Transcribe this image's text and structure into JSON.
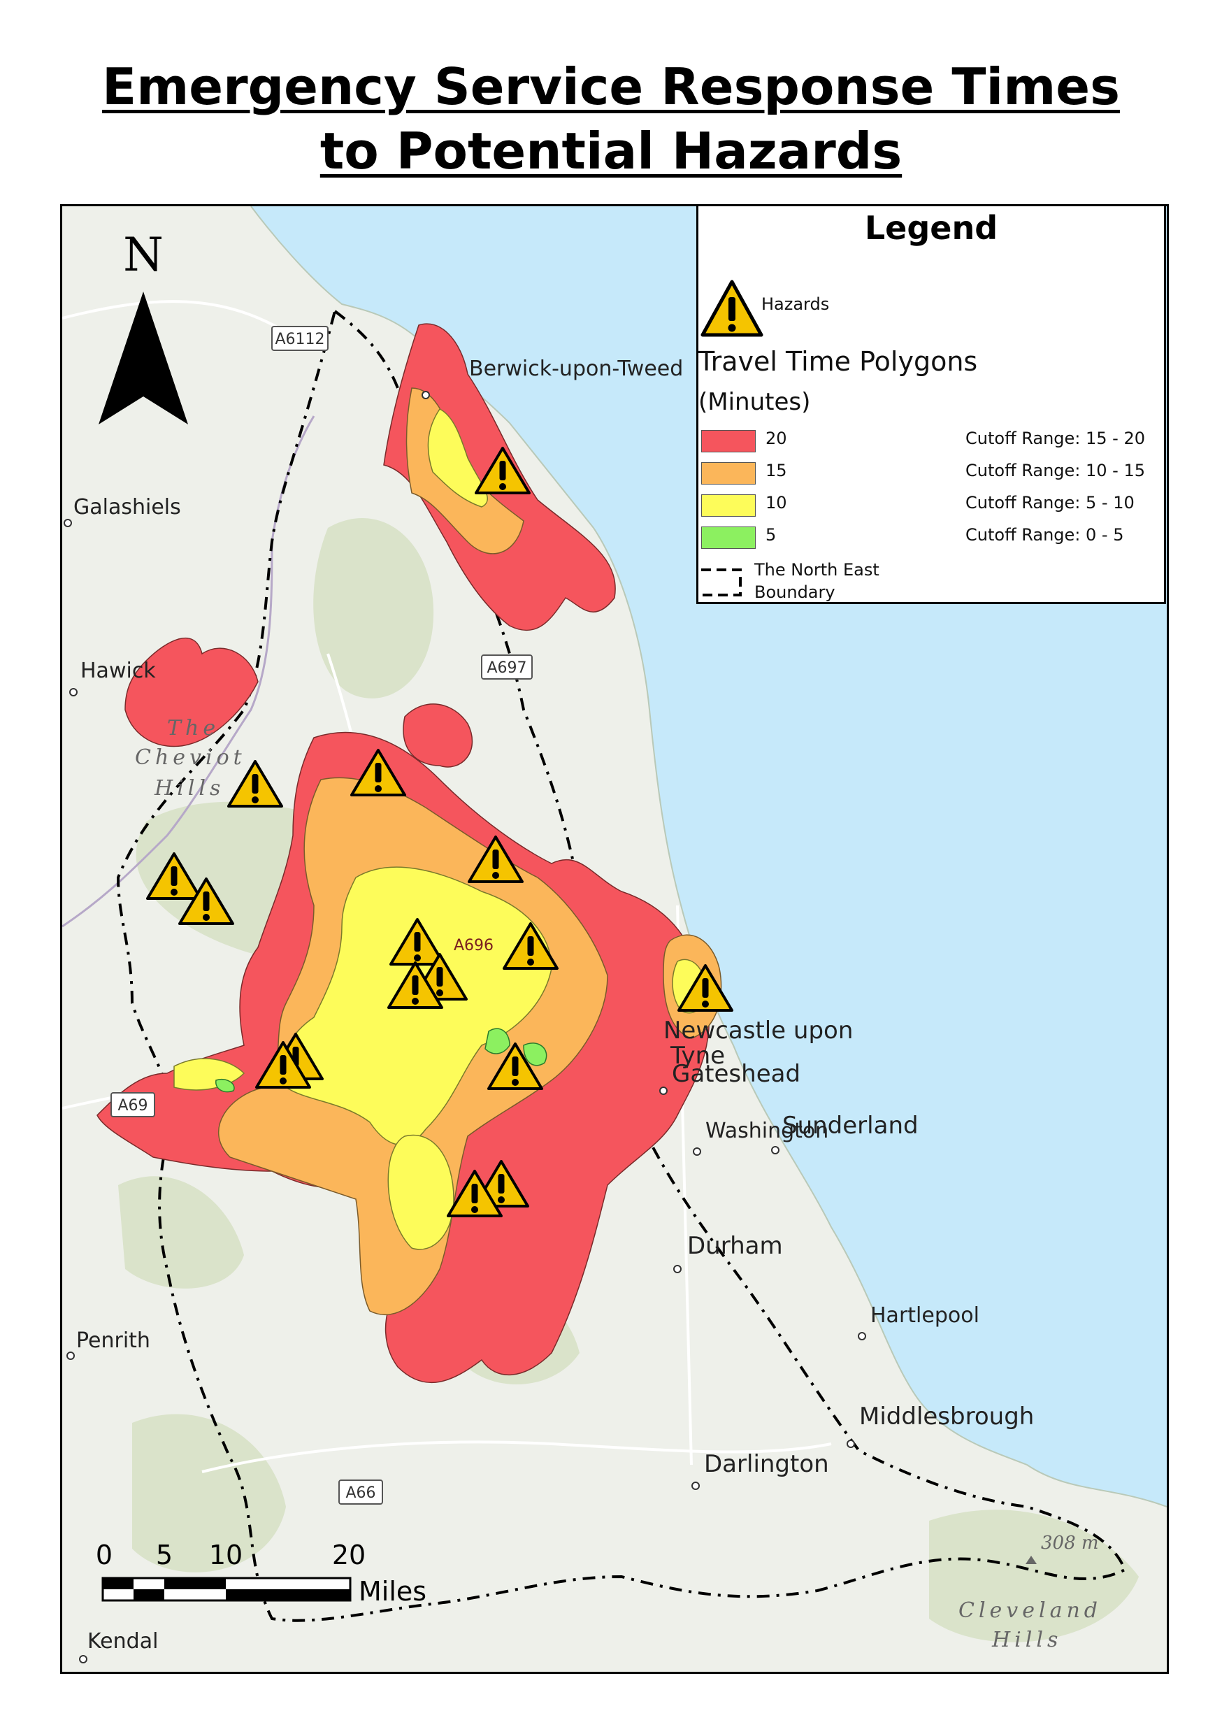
{
  "title": {
    "line1": "Emergency Service Response Times",
    "line2": "to Potential Hazards"
  },
  "north_arrow": {
    "label": "N"
  },
  "legend": {
    "title": "Legend",
    "hazards_label": "Hazards",
    "hazard_icon": "warning-triangle-icon",
    "polygons_title": "Travel Time Polygons",
    "polygons_unit": "(Minutes)",
    "classes": [
      {
        "value": "20",
        "cutoff": "Cutoff Range: 15 - 20",
        "color": "#f5555d"
      },
      {
        "value": "15",
        "cutoff": "Cutoff Range: 10 - 15",
        "color": "#fbb65a"
      },
      {
        "value": "10",
        "cutoff": "Cutoff Range: 5 - 10",
        "color": "#fdfc5a"
      },
      {
        "value": "5",
        "cutoff": "Cutoff Range: 0 - 5",
        "color": "#8cf060"
      }
    ],
    "boundary_label_1": "The North East",
    "boundary_label_2": "Boundary"
  },
  "map": {
    "places": [
      "Berwick-upon-Tweed",
      "Galashiels",
      "Hawick",
      "Newcastle upon",
      "Tyne",
      "Gateshead",
      "Washington",
      "Sunderland",
      "Durham",
      "Hartlepool",
      "Penrith",
      "Middlesbrough",
      "Darlington",
      "Kendal"
    ],
    "roads": [
      "A6112",
      "A697",
      "A696",
      "A69",
      "A66"
    ],
    "terrain": [
      "The",
      "Cheviot",
      "Hills",
      "Cleveland",
      "Hills",
      "308 m"
    ],
    "colors": {
      "sea": "#c6e9fa",
      "land": "#eef0ea",
      "hills": "#d6e0c4",
      "boundary": "#000000",
      "hazard": "#f5c400"
    }
  },
  "scale_bar": {
    "ticks": [
      "0",
      "5",
      "10",
      "20"
    ],
    "unit": "Miles"
  }
}
